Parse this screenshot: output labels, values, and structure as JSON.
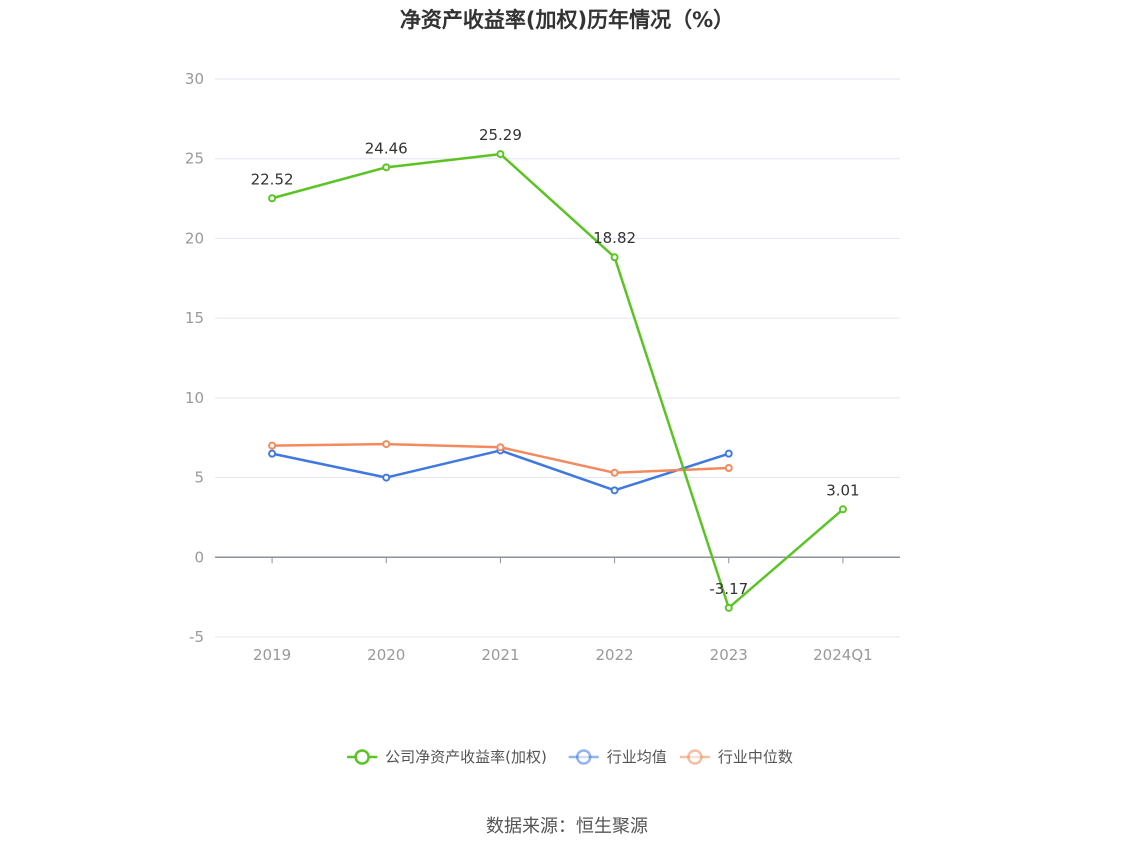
{
  "title": "净资产收益率(加权)历年情况（%）",
  "source": "数据来源：恒生聚源",
  "chart_data": {
    "type": "line",
    "title": "净资产收益率(加权)历年情况（%）",
    "categories": [
      "2019",
      "2020",
      "2021",
      "2022",
      "2023",
      "2024Q1"
    ],
    "ylim": [
      -5,
      30
    ],
    "yticks": [
      -5,
      0,
      5,
      10,
      15,
      20,
      25,
      30
    ],
    "grid": true,
    "legend_position": "bottom",
    "series": [
      {
        "name": "公司净资产收益率(加权)",
        "color": "#5bc424",
        "values": [
          22.52,
          24.46,
          25.29,
          18.82,
          -3.17,
          3.01
        ],
        "labels": [
          "22.52",
          "24.46",
          "25.29",
          "18.82",
          "-3.17",
          "3.01"
        ]
      },
      {
        "name": "行业均值",
        "color": "#3f78e0",
        "values": [
          6.5,
          5.0,
          6.7,
          4.2,
          6.5,
          null
        ]
      },
      {
        "name": "行业中位数",
        "color": "#f38a5d",
        "values": [
          7.0,
          7.1,
          6.9,
          5.3,
          5.6,
          null
        ]
      }
    ]
  }
}
